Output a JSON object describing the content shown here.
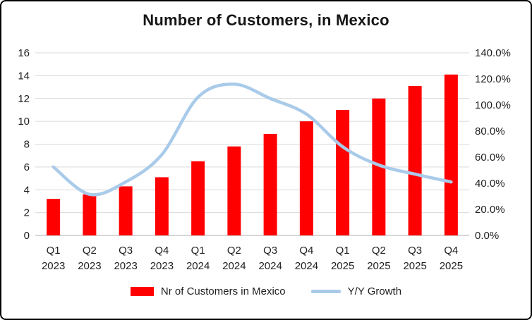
{
  "colors": {
    "bar": "#FF0000",
    "line": "#A9CBE9",
    "grid": "#D9D9D9",
    "axis_line": "#BFBFBF",
    "text": "#1F1F1F",
    "title": "#161616",
    "frame_border": "#000000",
    "background": "#FFFFFF"
  },
  "chart_data": {
    "type": "combo",
    "title": "Number of Customers, in Mexico",
    "categories": [
      "Q1 2023",
      "Q2 2023",
      "Q3 2023",
      "Q4 2023",
      "Q1 2024",
      "Q2 2024",
      "Q3 2024",
      "Q4 2024",
      "Q1 2025",
      "Q2 2025",
      "Q3 2025",
      "Q4 2025"
    ],
    "series": [
      {
        "name": "Nr of Customers in Mexico",
        "type": "bar",
        "axis": "left",
        "color": "#FF0000",
        "values": [
          3.2,
          3.6,
          4.3,
          5.1,
          6.5,
          7.8,
          8.9,
          10,
          11,
          12,
          13.1,
          14.1
        ]
      },
      {
        "name": "Y/Y Growth",
        "type": "line",
        "axis": "right",
        "color": "#A9CBE9",
        "unit": "%",
        "values": [
          52.5,
          31.5,
          41,
          62,
          106,
          116,
          105,
          93,
          68,
          54,
          47,
          41
        ]
      }
    ],
    "left_axis": {
      "min": 0,
      "max": 16,
      "ticks": [
        0,
        2,
        4,
        6,
        8,
        10,
        12,
        14,
        16
      ]
    },
    "right_axis": {
      "min": 0,
      "max": 140,
      "tick_values": [
        0,
        20,
        40,
        60,
        80,
        100,
        120,
        140
      ],
      "tick_labels": [
        "0.0%",
        "20.0%",
        "40.0%",
        "60.0%",
        "80.0%",
        "100.0%",
        "120.0%",
        "140.0%"
      ]
    },
    "grid": true,
    "legend_position": "bottom"
  }
}
